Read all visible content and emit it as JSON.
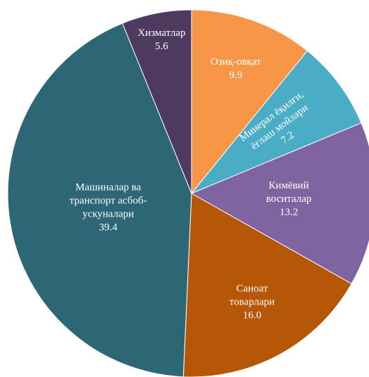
{
  "chart_data": {
    "type": "pie",
    "categories": [
      [
        "Озиқ-овқат"
      ],
      [
        "Минерал ёқилғи,",
        "ёғлаш мойлари"
      ],
      [
        "Кимёвий",
        "воситалар"
      ],
      [
        "Саноат",
        "товарлари"
      ],
      [
        "Машиналар ва",
        "транспорт асбоб-",
        "ускуналари"
      ],
      [
        "Хизматлар"
      ]
    ],
    "values": [
      9.9,
      7.2,
      13.2,
      16.0,
      39.4,
      5.6
    ],
    "value_labels": [
      "9.9",
      "7.2",
      "13.2",
      "16.0",
      "39.4",
      "5.6"
    ],
    "colors": [
      "#f79646",
      "#4bacc6",
      "#8064a2",
      "#b65708",
      "#2d6776",
      "#4f3a5f"
    ]
  }
}
